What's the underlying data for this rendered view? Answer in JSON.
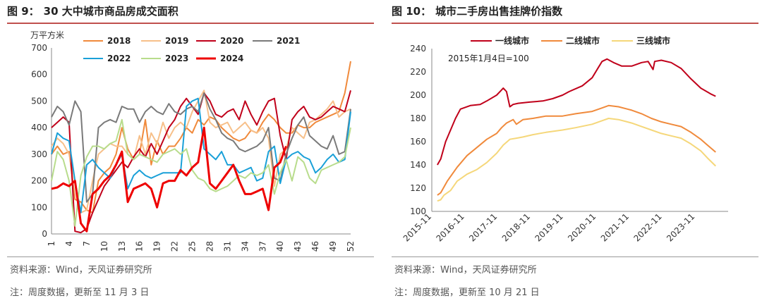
{
  "left": {
    "fig_no": "图 9：",
    "title": "30 大中城市商品房成交面积",
    "source": "资料来源：Wind，天风证券研究所",
    "note": "注：周度数据，更新至 11 月 3 日"
  },
  "right": {
    "fig_no": "图 10：",
    "title": "城市二手房出售挂牌价指数",
    "source": "资料来源：Wind，天风证券研究所",
    "note": "注：周度数据，更新至 10 月 21 日"
  },
  "chart_data": [
    {
      "type": "line",
      "unit_label": "万平方米",
      "ylim": [
        0,
        700
      ],
      "yticks": [
        0,
        100,
        200,
        300,
        400,
        500,
        600,
        700
      ],
      "xlim": [
        1,
        52
      ],
      "xticks": [
        1,
        4,
        7,
        10,
        13,
        16,
        19,
        22,
        25,
        28,
        31,
        34,
        37,
        40,
        43,
        46,
        49,
        52
      ],
      "grid": false,
      "legend": "top",
      "series": [
        {
          "name": "2018",
          "color": "#f08a3c",
          "width": 2,
          "values": [
            300,
            330,
            300,
            310,
            130,
            120,
            90,
            80,
            200,
            230,
            250,
            300,
            400,
            320,
            280,
            300,
            430,
            260,
            350,
            300,
            330,
            330,
            360,
            400,
            380,
            430,
            410,
            440,
            430,
            400,
            380,
            360,
            350,
            360,
            390,
            380,
            420,
            450,
            430,
            400,
            380,
            380,
            410,
            400,
            400,
            420,
            430,
            440,
            450,
            460,
            530,
            650
          ]
        },
        {
          "name": "2019",
          "color": "#f7c08a",
          "width": 2,
          "values": [
            330,
            360,
            340,
            300,
            200,
            80,
            90,
            200,
            300,
            320,
            340,
            330,
            330,
            300,
            280,
            370,
            300,
            380,
            340,
            420,
            360,
            400,
            420,
            400,
            460,
            500,
            540,
            420,
            400,
            410,
            420,
            380,
            400,
            420,
            390,
            380,
            400,
            360,
            180,
            300,
            320,
            400,
            380,
            360,
            420,
            430,
            450,
            470,
            500,
            440,
            460,
            470
          ]
        },
        {
          "name": "2020",
          "color": "#c0001a",
          "width": 2,
          "values": [
            400,
            420,
            440,
            420,
            10,
            5,
            20,
            80,
            130,
            180,
            210,
            240,
            270,
            250,
            290,
            320,
            290,
            340,
            300,
            350,
            400,
            430,
            480,
            510,
            480,
            450,
            530,
            500,
            450,
            440,
            460,
            470,
            430,
            500,
            450,
            410,
            460,
            500,
            510,
            370,
            280,
            430,
            460,
            480,
            440,
            430,
            440,
            460,
            480,
            470,
            460,
            540
          ]
        },
        {
          "name": "2021",
          "color": "#7a7a7a",
          "width": 2,
          "values": [
            440,
            480,
            460,
            410,
            500,
            460,
            120,
            150,
            400,
            420,
            430,
            420,
            480,
            470,
            470,
            420,
            460,
            480,
            460,
            450,
            490,
            460,
            450,
            470,
            480,
            460,
            530,
            470,
            430,
            380,
            360,
            350,
            320,
            310,
            320,
            330,
            350,
            400,
            210,
            200,
            300,
            360,
            410,
            440,
            370,
            350,
            330,
            320,
            370,
            300,
            310,
            470
          ]
        },
        {
          "name": "2022",
          "color": "#1aa0d8",
          "width": 2,
          "values": [
            300,
            380,
            360,
            350,
            200,
            80,
            260,
            280,
            250,
            230,
            210,
            260,
            300,
            170,
            220,
            240,
            220,
            210,
            220,
            230,
            230,
            230,
            230,
            480,
            500,
            510,
            320,
            300,
            280,
            310,
            260,
            260,
            230,
            240,
            250,
            200,
            210,
            310,
            330,
            190,
            280,
            300,
            310,
            290,
            280,
            230,
            250,
            280,
            300,
            270,
            280,
            460
          ]
        },
        {
          "name": "2023",
          "color": "#b8dc8c",
          "width": 2,
          "values": [
            200,
            310,
            280,
            200,
            30,
            220,
            290,
            330,
            330,
            320,
            340,
            350,
            430,
            300,
            280,
            300,
            290,
            280,
            270,
            300,
            310,
            320,
            300,
            320,
            240,
            210,
            200,
            170,
            160,
            170,
            180,
            200,
            220,
            210,
            230,
            220,
            230,
            260,
            150,
            230,
            280,
            200,
            290,
            270,
            210,
            190,
            240,
            250,
            260,
            270,
            290,
            400
          ]
        },
        {
          "name": "2024",
          "color": "#ee0000",
          "width": 3,
          "values": [
            170,
            175,
            190,
            180,
            200,
            40,
            10,
            150,
            170,
            200,
            220,
            260,
            310,
            120,
            170,
            180,
            190,
            170,
            100,
            190,
            200,
            200,
            240,
            220,
            250,
            270,
            400,
            190,
            170,
            200,
            230,
            260,
            200,
            150,
            150,
            160,
            170,
            90,
            250,
            270,
            330
          ]
        }
      ]
    },
    {
      "type": "line",
      "annotation": "2015年1月4日=100",
      "ylim": [
        100,
        240
      ],
      "yticks": [
        100,
        120,
        140,
        160,
        180,
        200,
        220,
        240
      ],
      "xlim": [
        2015.83,
        2024.83
      ],
      "xticks": [
        "2015-11",
        "2016-11",
        "2017-11",
        "2018-11",
        "2019-11",
        "2020-11",
        "2021-11",
        "2022-11",
        "2023-11"
      ],
      "grid": false,
      "legend": "top",
      "series": [
        {
          "name": "一线城市",
          "color": "#c0001a",
          "width": 2,
          "points": [
            [
              2016.0,
              140
            ],
            [
              2016.1,
              145
            ],
            [
              2016.25,
              160
            ],
            [
              2016.4,
              170
            ],
            [
              2016.55,
              180
            ],
            [
              2016.7,
              188
            ],
            [
              2017.0,
              191
            ],
            [
              2017.3,
              192
            ],
            [
              2017.5,
              195
            ],
            [
              2017.8,
              200
            ],
            [
              2018.0,
              206
            ],
            [
              2018.1,
              203
            ],
            [
              2018.2,
              190
            ],
            [
              2018.3,
              192
            ],
            [
              2018.45,
              193
            ],
            [
              2018.8,
              194
            ],
            [
              2019.2,
              195
            ],
            [
              2019.5,
              197
            ],
            [
              2019.8,
              200
            ],
            [
              2020.0,
              203
            ],
            [
              2020.4,
              208
            ],
            [
              2020.7,
              215
            ],
            [
              2020.85,
              222
            ],
            [
              2021.0,
              229
            ],
            [
              2021.15,
              231
            ],
            [
              2021.35,
              228
            ],
            [
              2021.6,
              225
            ],
            [
              2021.9,
              225
            ],
            [
              2022.2,
              228
            ],
            [
              2022.4,
              229
            ],
            [
              2022.55,
              222
            ],
            [
              2022.6,
              229
            ],
            [
              2022.8,
              230
            ],
            [
              2023.1,
              228
            ],
            [
              2023.4,
              223
            ],
            [
              2023.7,
              214
            ],
            [
              2024.0,
              206
            ],
            [
              2024.3,
              201
            ],
            [
              2024.45,
              199
            ]
          ]
        },
        {
          "name": "二线城市",
          "color": "#f08a3c",
          "width": 2,
          "points": [
            [
              2016.0,
              114
            ],
            [
              2016.1,
              116
            ],
            [
              2016.3,
              126
            ],
            [
              2016.6,
              138
            ],
            [
              2016.9,
              148
            ],
            [
              2017.2,
              155
            ],
            [
              2017.5,
              162
            ],
            [
              2017.8,
              167
            ],
            [
              2017.95,
              172
            ],
            [
              2018.1,
              176
            ],
            [
              2018.3,
              179
            ],
            [
              2018.4,
              175
            ],
            [
              2018.6,
              179
            ],
            [
              2018.9,
              180
            ],
            [
              2019.3,
              182
            ],
            [
              2019.8,
              182
            ],
            [
              2020.2,
              184
            ],
            [
              2020.7,
              186
            ],
            [
              2021.0,
              189
            ],
            [
              2021.2,
              191
            ],
            [
              2021.5,
              190
            ],
            [
              2021.9,
              187
            ],
            [
              2022.2,
              184
            ],
            [
              2022.5,
              180
            ],
            [
              2022.8,
              177
            ],
            [
              2023.1,
              175
            ],
            [
              2023.4,
              173
            ],
            [
              2023.7,
              168
            ],
            [
              2024.0,
              162
            ],
            [
              2024.2,
              157
            ],
            [
              2024.45,
              151
            ]
          ]
        },
        {
          "name": "三线城市",
          "color": "#f5d77a",
          "width": 2,
          "points": [
            [
              2016.0,
              109
            ],
            [
              2016.1,
              110
            ],
            [
              2016.2,
              114
            ],
            [
              2016.4,
              118
            ],
            [
              2016.6,
              126
            ],
            [
              2016.9,
              132
            ],
            [
              2017.2,
              136
            ],
            [
              2017.5,
              142
            ],
            [
              2017.8,
              150
            ],
            [
              2018.0,
              157
            ],
            [
              2018.2,
              162
            ],
            [
              2018.4,
              163
            ],
            [
              2018.6,
              164
            ],
            [
              2018.9,
              166
            ],
            [
              2019.3,
              168
            ],
            [
              2019.8,
              170
            ],
            [
              2020.2,
              172
            ],
            [
              2020.7,
              175
            ],
            [
              2021.0,
              178
            ],
            [
              2021.2,
              180
            ],
            [
              2021.5,
              179
            ],
            [
              2021.9,
              176
            ],
            [
              2022.2,
              173
            ],
            [
              2022.5,
              170
            ],
            [
              2022.8,
              167
            ],
            [
              2023.1,
              165
            ],
            [
              2023.4,
              163
            ],
            [
              2023.7,
              158
            ],
            [
              2024.0,
              152
            ],
            [
              2024.2,
              146
            ],
            [
              2024.45,
              139
            ]
          ]
        }
      ]
    }
  ]
}
